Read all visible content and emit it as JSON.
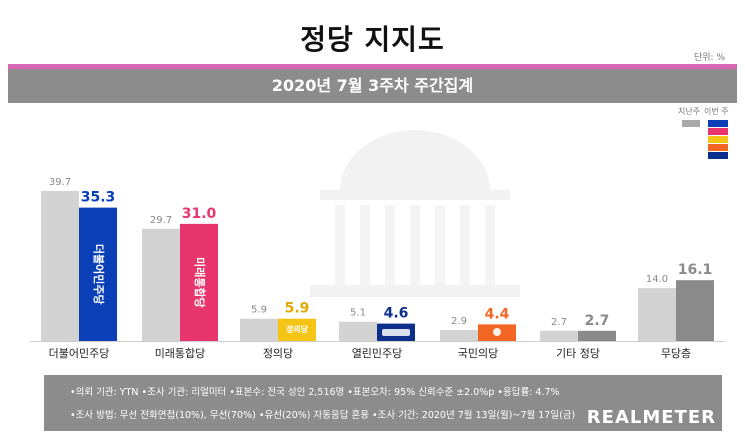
{
  "title": "정당 지지도",
  "unit_label": "단위: %",
  "subtitle": "2020년 7월 3주차 주간집계",
  "legend": {
    "prev": "지난주",
    "current": "이번 주"
  },
  "colors": {
    "prev_bar": "#d3d3d3",
    "democratic": "#0a3fb8",
    "future_united": "#e8356e",
    "justice": "#f5c516",
    "open_democratic": "#0b2f8a",
    "people": "#f26522",
    "others": "#8a8a8a",
    "none": "#8a8a8a",
    "legend_swatches": [
      "#0a3fb8",
      "#e8356e",
      "#f5c516",
      "#f26522",
      "#0b2f8a"
    ]
  },
  "chart_data": {
    "type": "bar",
    "categories": [
      "더불어민주당",
      "미래통합당",
      "정의당",
      "열린민주당",
      "국민의당",
      "기타 정당",
      "무당층"
    ],
    "series": [
      {
        "name": "지난주",
        "values": [
          39.7,
          29.7,
          5.9,
          5.1,
          2.9,
          2.7,
          14.0
        ]
      },
      {
        "name": "이번 주",
        "values": [
          35.3,
          31.0,
          5.9,
          4.6,
          4.4,
          2.7,
          16.1
        ]
      }
    ],
    "prev_labels": [
      "39.7",
      "29.7",
      "5.9",
      "5.1",
      "2.9",
      "2.7",
      "14.0"
    ],
    "current_labels": [
      "35.3",
      "31.0",
      "5.9",
      "4.6",
      "4.4",
      "2.7",
      "16.1"
    ],
    "ylim": [
      0,
      42
    ],
    "grid": false,
    "legend_position": "top-right",
    "logos": [
      "더불어민주당",
      "미래통합당",
      "정의당",
      "",
      "",
      "",
      ""
    ]
  },
  "footer": {
    "line1": "•의뢰 기관: YTN •조사 기관: 리얼미터 •표본수: 전국 성인 2,516명 •표본오차: 95% 신뢰수준 ±2.0%p •응답률: 4.7%",
    "line2": "•조사 방법: 무선 전화면접(10%), 무선(70%) •유선(20%) 자동응답 혼용 •조사 기간: 2020년 7월 13일(월)~7월 17일(금)",
    "brand": "REALMETER"
  }
}
